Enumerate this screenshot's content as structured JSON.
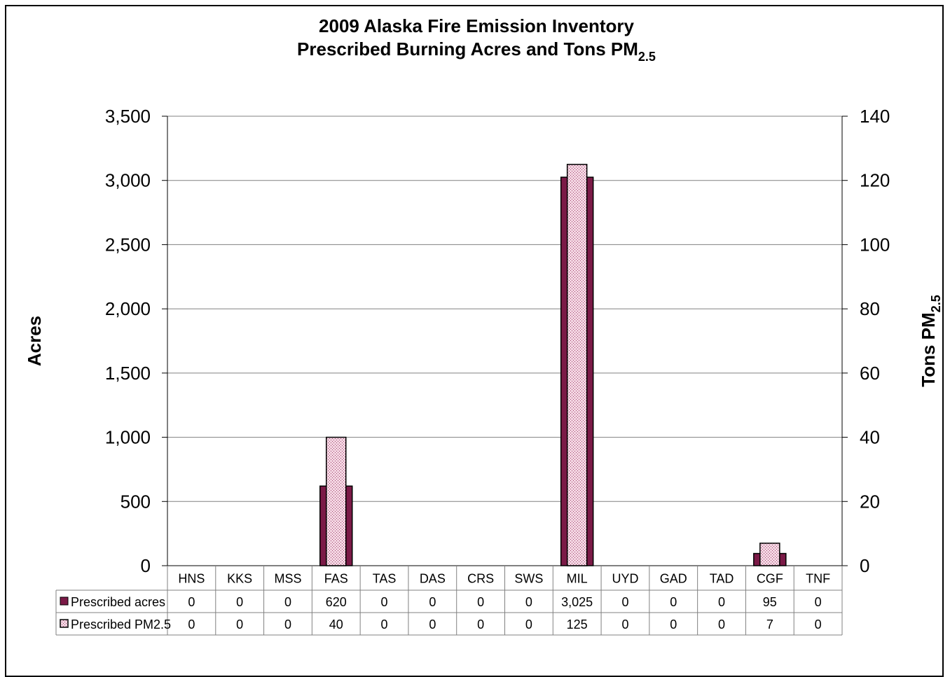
{
  "chart_data": {
    "type": "bar",
    "title_line1": "2009 Alaska Fire Emission Inventory",
    "title_line2_main": "Prescribed Burning Acres and Tons PM",
    "title_line2_sub": "2.5",
    "ylabel_left": "Acres",
    "ylabel_right_main": "Tons PM",
    "ylabel_right_sub": "2.5",
    "ylim_left": [
      0,
      3500
    ],
    "ylim_right": [
      0,
      140
    ],
    "left_ticks": [
      "0",
      "500",
      "1,000",
      "1,500",
      "2,000",
      "2,500",
      "3,000",
      "3,500"
    ],
    "right_ticks": [
      "0",
      "20",
      "40",
      "60",
      "80",
      "100",
      "120",
      "140"
    ],
    "categories": [
      "HNS",
      "KKS",
      "MSS",
      "FAS",
      "TAS",
      "DAS",
      "CRS",
      "SWS",
      "MIL",
      "UYD",
      "GAD",
      "TAD",
      "CGF",
      "TNF"
    ],
    "grid": true,
    "legend_placement": "data-table",
    "series": [
      {
        "name": "Prescribed acres",
        "axis": "left",
        "color": "#7b1a47",
        "values": [
          0,
          0,
          0,
          620,
          0,
          0,
          0,
          0,
          3025,
          0,
          0,
          0,
          95,
          0
        ],
        "labels": [
          "0",
          "0",
          "0",
          "620",
          "0",
          "0",
          "0",
          "0",
          "3,025",
          "0",
          "0",
          "0",
          "95",
          "0"
        ]
      },
      {
        "name": "Prescribed PM2.5",
        "axis": "right",
        "color": "#e6b3c8",
        "values": [
          0,
          0,
          0,
          40,
          0,
          0,
          0,
          0,
          125,
          0,
          0,
          0,
          7,
          0
        ],
        "labels": [
          "0",
          "0",
          "0",
          "40",
          "0",
          "0",
          "0",
          "0",
          "125",
          "0",
          "0",
          "0",
          "7",
          "0"
        ]
      }
    ]
  }
}
